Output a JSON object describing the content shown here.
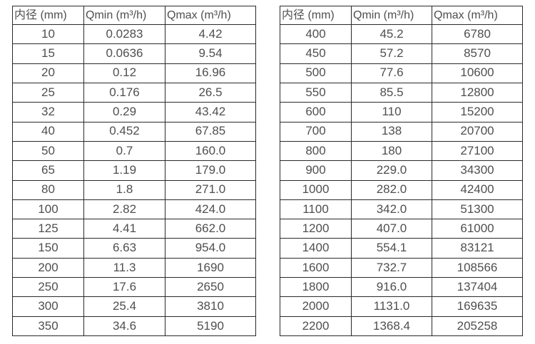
{
  "page": {
    "background_color": "#ffffff",
    "border_color": "#2a2a2a",
    "text_color": "#4f4f4f"
  },
  "tables": [
    {
      "name": "flow-range-dn10-350",
      "headers": [
        "内径 (mm)",
        "Qmin (m³/h)",
        "Qmax (m³/h)"
      ],
      "rows": [
        [
          "10",
          "0.0283",
          "4.42"
        ],
        [
          "15",
          "0.0636",
          "9.54"
        ],
        [
          "20",
          "0.12",
          "16.96"
        ],
        [
          "25",
          "0.176",
          "26.5"
        ],
        [
          "32",
          "0.29",
          "43.42"
        ],
        [
          "40",
          "0.452",
          "67.85"
        ],
        [
          "50",
          "0.7",
          "160.0"
        ],
        [
          "65",
          "1.19",
          "179.0"
        ],
        [
          "80",
          "1.8",
          "271.0"
        ],
        [
          "100",
          "2.82",
          "424.0"
        ],
        [
          "125",
          "4.41",
          "662.0"
        ],
        [
          "150",
          "6.63",
          "954.0"
        ],
        [
          "200",
          "11.3",
          "1690"
        ],
        [
          "250",
          "17.6",
          "2650"
        ],
        [
          "300",
          "25.4",
          "3810"
        ],
        [
          "350",
          "34.6",
          "5190"
        ]
      ]
    },
    {
      "name": "flow-range-dn400-2200",
      "headers": [
        "内径 (mm)",
        "Qmin (m³/h)",
        "Qmax (m³/h)"
      ],
      "rows": [
        [
          "400",
          "45.2",
          "6780"
        ],
        [
          "450",
          "57.2",
          "8570"
        ],
        [
          "500",
          "77.6",
          "10600"
        ],
        [
          "550",
          "85.5",
          "12800"
        ],
        [
          "600",
          "110",
          "15200"
        ],
        [
          "700",
          "138",
          "20700"
        ],
        [
          "800",
          "180",
          "27100"
        ],
        [
          "900",
          "229.0",
          "34300"
        ],
        [
          "1000",
          "282.0",
          "42400"
        ],
        [
          "1100",
          "342.0",
          "51300"
        ],
        [
          "1200",
          "407.0",
          "61000"
        ],
        [
          "1400",
          "554.1",
          "83121"
        ],
        [
          "1600",
          "732.7",
          "108566"
        ],
        [
          "1800",
          "916.0",
          "137404"
        ],
        [
          "2000",
          "1131.0",
          "169635"
        ],
        [
          "2200",
          "1368.4",
          "205258"
        ]
      ]
    }
  ]
}
